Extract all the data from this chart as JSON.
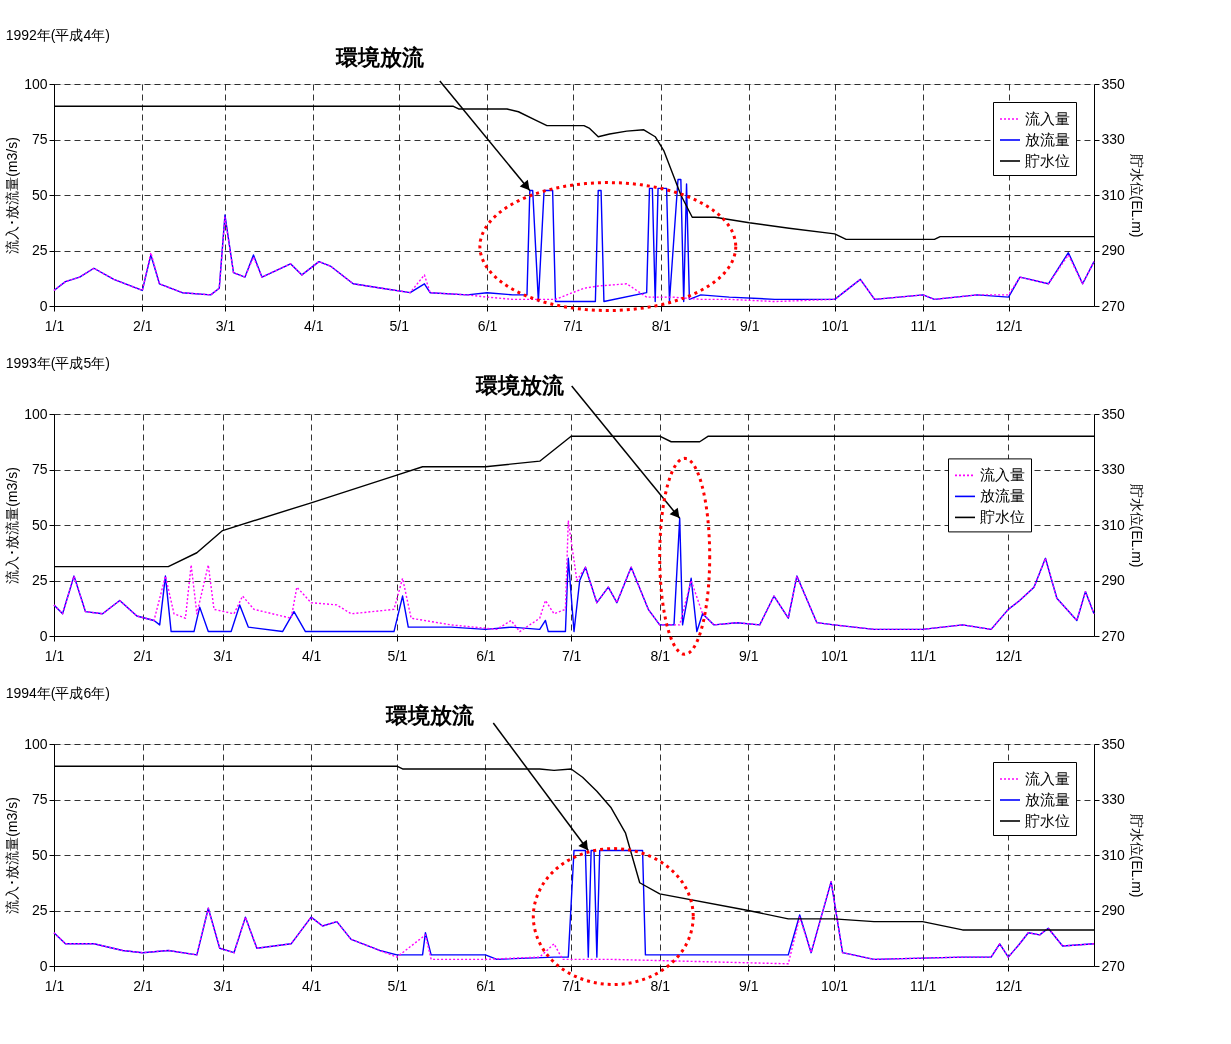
{
  "chart_data": [
    {
      "type": "line",
      "title": "1992年(平成4年)",
      "ylabel": "流入･放流量(m3/s)",
      "y2label": "貯水位(EL.m)",
      "xlim": [
        "1992-01-01",
        "1992-12-31"
      ],
      "xticks": [
        {
          "value": "1992-01-01",
          "label": "1/1"
        },
        {
          "value": "1992-02-01",
          "label": "2/1"
        },
        {
          "value": "1992-03-01",
          "label": "3/1"
        },
        {
          "value": "1992-04-01",
          "label": "4/1"
        },
        {
          "value": "1992-05-01",
          "label": "5/1"
        },
        {
          "value": "1992-06-01",
          "label": "6/1"
        },
        {
          "value": "1992-07-01",
          "label": "7/1"
        },
        {
          "value": "1992-08-01",
          "label": "8/1"
        },
        {
          "value": "1992-09-01",
          "label": "9/1"
        },
        {
          "value": "1992-10-01",
          "label": "10/1"
        },
        {
          "value": "1992-11-01",
          "label": "11/1"
        },
        {
          "value": "1992-12-01",
          "label": "12/1"
        }
      ],
      "ylim": [
        0,
        100
      ],
      "yticks": [
        0,
        25,
        50,
        75,
        100
      ],
      "y2lim": [
        270,
        350
      ],
      "y2ticks": [
        270,
        290,
        310,
        330,
        350
      ],
      "grid": true,
      "legend": "top right",
      "annotations": [
        {
          "text": "環境放流",
          "x": "1992-06-16",
          "y": 52
        }
      ],
      "series": [
        {
          "name": "流入量",
          "color": "#ff00ff",
          "line_style": "dotted",
          "x": [
            "1992-01-01",
            "1992-01-05",
            "1992-01-10",
            "1992-01-15",
            "1992-01-22",
            "1992-02-01",
            "1992-02-04",
            "1992-02-07",
            "1992-02-15",
            "1992-02-25",
            "1992-02-28",
            "1992-03-01",
            "1992-03-04",
            "1992-03-08",
            "1992-03-11",
            "1992-03-14",
            "1992-03-24",
            "1992-03-28",
            "1992-04-03",
            "1992-04-07",
            "1992-04-15",
            "1992-04-25",
            "1992-05-05",
            "1992-05-10",
            "1992-05-12",
            "1992-05-25",
            "1992-06-01",
            "1992-06-10",
            "1992-06-25",
            "1992-07-05",
            "1992-07-10",
            "1992-07-20",
            "1992-07-27",
            "1992-08-05",
            "1992-08-15",
            "1992-08-25",
            "1992-09-10",
            "1992-10-01",
            "1992-10-10",
            "1992-10-15",
            "1992-11-01",
            "1992-11-05",
            "1992-11-20",
            "1992-12-01",
            "1992-12-05",
            "1992-12-15",
            "1992-12-22",
            "1992-12-27",
            "1992-12-31"
          ],
          "values": [
            7,
            11,
            13,
            17,
            12,
            7,
            24,
            10,
            6,
            5,
            8,
            40,
            15,
            13,
            22,
            13,
            19,
            14,
            20,
            18,
            10,
            8,
            6,
            14,
            6,
            5,
            4,
            3,
            3,
            8,
            9,
            10,
            4,
            4,
            3,
            3,
            2,
            3,
            12,
            3,
            5,
            3,
            5,
            5,
            13,
            10,
            23,
            10,
            20
          ]
        },
        {
          "name": "放流量",
          "color": "#0000ff",
          "line_style": "solid",
          "x": [
            "1992-01-01",
            "1992-01-05",
            "1992-01-10",
            "1992-01-15",
            "1992-01-22",
            "1992-02-01",
            "1992-02-04",
            "1992-02-07",
            "1992-02-15",
            "1992-02-25",
            "1992-02-28",
            "1992-03-01",
            "1992-03-04",
            "1992-03-08",
            "1992-03-11",
            "1992-03-14",
            "1992-03-24",
            "1992-03-28",
            "1992-04-03",
            "1992-04-07",
            "1992-04-15",
            "1992-04-25",
            "1992-05-05",
            "1992-05-10",
            "1992-05-12",
            "1992-05-25",
            "1992-06-01",
            "1992-06-10",
            "1992-06-15",
            "1992-06-16",
            "1992-06-17",
            "1992-06-19",
            "1992-06-21",
            "1992-06-24",
            "1992-06-25",
            "1992-07-09",
            "1992-07-10",
            "1992-07-11",
            "1992-07-12",
            "1992-07-27",
            "1992-07-28",
            "1992-07-29",
            "1992-07-30",
            "1992-07-31",
            "1992-08-03",
            "1992-08-04",
            "1992-08-07",
            "1992-08-08",
            "1992-08-09",
            "1992-08-10",
            "1992-08-11",
            "1992-08-15",
            "1992-08-25",
            "1992-09-10",
            "1992-10-01",
            "1992-10-10",
            "1992-10-15",
            "1992-11-01",
            "1992-11-05",
            "1992-11-20",
            "1992-12-01",
            "1992-12-05",
            "1992-12-15",
            "1992-12-22",
            "1992-12-27",
            "1992-12-31"
          ],
          "values": [
            7,
            11,
            13,
            17,
            12,
            7,
            23,
            10,
            6,
            5,
            8,
            41,
            15,
            13,
            23,
            13,
            19,
            14,
            20,
            18,
            10,
            8,
            6,
            10,
            6,
            5,
            6,
            5,
            5,
            52,
            52,
            2,
            52,
            52,
            2,
            2,
            52,
            52,
            2,
            6,
            53,
            53,
            2,
            53,
            53,
            2,
            57,
            57,
            2,
            55,
            3,
            5,
            4,
            3,
            3,
            12,
            3,
            5,
            3,
            5,
            4,
            13,
            10,
            24,
            10,
            20
          ]
        },
        {
          "name": "貯水位",
          "color": "#000000",
          "line_style": "solid",
          "axis": "y2",
          "x": [
            "1992-01-01",
            "1992-05-20",
            "1992-05-22",
            "1992-06-08",
            "1992-06-12",
            "1992-06-18",
            "1992-06-22",
            "1992-07-05",
            "1992-07-07",
            "1992-07-10",
            "1992-07-14",
            "1992-07-20",
            "1992-07-26",
            "1992-07-30",
            "1992-08-02",
            "1992-08-05",
            "1992-08-08",
            "1992-08-12",
            "1992-08-20",
            "1992-09-01",
            "1992-09-15",
            "1992-10-01",
            "1992-10-05",
            "1992-11-05",
            "1992-11-07",
            "1992-12-31"
          ],
          "values": [
            342,
            342,
            341,
            341,
            340,
            337,
            335,
            335,
            334,
            331,
            332,
            333,
            333.5,
            331,
            326,
            318,
            310,
            302,
            302,
            300,
            298,
            296,
            294,
            294,
            295,
            295
          ]
        }
      ]
    },
    {
      "type": "line",
      "title": "1993年(平成5年)",
      "ylabel": "流入･放流量(m3/s)",
      "y2label": "貯水位(EL.m)",
      "xlim": [
        "1993-01-01",
        "1993-12-31"
      ],
      "xticks": [
        {
          "value": "1993-01-01",
          "label": "1/1"
        },
        {
          "value": "1993-02-01",
          "label": "2/1"
        },
        {
          "value": "1993-03-01",
          "label": "3/1"
        },
        {
          "value": "1993-04-01",
          "label": "4/1"
        },
        {
          "value": "1993-05-01",
          "label": "5/1"
        },
        {
          "value": "1993-06-01",
          "label": "6/1"
        },
        {
          "value": "1993-07-01",
          "label": "7/1"
        },
        {
          "value": "1993-08-01",
          "label": "8/1"
        },
        {
          "value": "1993-09-01",
          "label": "9/1"
        },
        {
          "value": "1993-10-01",
          "label": "10/1"
        },
        {
          "value": "1993-11-01",
          "label": "11/1"
        },
        {
          "value": "1993-12-01",
          "label": "12/1"
        }
      ],
      "ylim": [
        0,
        100
      ],
      "yticks": [
        0,
        25,
        50,
        75,
        100
      ],
      "y2lim": [
        270,
        350
      ],
      "y2ticks": [
        270,
        290,
        310,
        330,
        350
      ],
      "grid": true,
      "legend": "right",
      "annotations": [
        {
          "text": "環境放流",
          "x": "1993-08-08",
          "y": 53
        }
      ],
      "series": [
        {
          "name": "流入量",
          "color": "#ff00ff",
          "line_style": "dotted",
          "x": [
            "1993-01-01",
            "1993-01-04",
            "1993-01-08",
            "1993-01-12",
            "1993-01-18",
            "1993-01-24",
            "1993-01-30",
            "1993-02-05",
            "1993-02-09",
            "1993-02-12",
            "1993-02-16",
            "1993-02-18",
            "1993-02-20",
            "1993-02-24",
            "1993-02-26",
            "1993-03-05",
            "1993-03-08",
            "1993-03-12",
            "1993-03-25",
            "1993-03-27",
            "1993-04-01",
            "1993-04-10",
            "1993-04-15",
            "1993-04-30",
            "1993-05-03",
            "1993-05-06",
            "1993-05-20",
            "1993-06-05",
            "1993-06-10",
            "1993-06-13",
            "1993-06-20",
            "1993-06-22",
            "1993-06-25",
            "1993-06-29",
            "1993-06-30",
            "1993-07-03",
            "1993-07-06",
            "1993-07-10",
            "1993-07-14",
            "1993-07-17",
            "1993-07-22",
            "1993-07-28",
            "1993-08-01",
            "1993-08-08",
            "1993-08-12",
            "1993-08-16",
            "1993-08-20",
            "1993-08-28",
            "1993-09-05",
            "1993-09-10",
            "1993-09-15",
            "1993-09-18",
            "1993-09-25",
            "1993-10-01",
            "1993-10-15",
            "1993-11-01",
            "1993-11-15",
            "1993-11-25",
            "1993-12-01",
            "1993-12-05",
            "1993-12-10",
            "1993-12-14",
            "1993-12-18",
            "1993-12-25",
            "1993-12-28",
            "1993-12-31"
          ],
          "values": [
            14,
            10,
            27,
            11,
            10,
            16,
            9,
            7,
            27,
            10,
            8,
            32,
            10,
            32,
            12,
            10,
            18,
            12,
            8,
            22,
            15,
            14,
            10,
            12,
            26,
            8,
            5,
            3,
            7,
            2,
            8,
            16,
            10,
            12,
            52,
            25,
            31,
            15,
            22,
            15,
            31,
            12,
            5,
            5,
            25,
            10,
            5,
            6,
            5,
            18,
            8,
            27,
            6,
            5,
            3,
            3,
            5,
            3,
            12,
            16,
            22,
            35,
            17,
            7,
            20,
            10
          ]
        },
        {
          "name": "放流量",
          "color": "#0000ff",
          "line_style": "solid",
          "x": [
            "1993-01-01",
            "1993-01-04",
            "1993-01-08",
            "1993-01-12",
            "1993-01-18",
            "1993-01-24",
            "1993-01-30",
            "1993-02-05",
            "1993-02-07",
            "1993-02-09",
            "1993-02-11",
            "1993-02-19",
            "1993-02-21",
            "1993-02-24",
            "1993-03-04",
            "1993-03-07",
            "1993-03-10",
            "1993-03-22",
            "1993-03-26",
            "1993-03-30",
            "1993-04-30",
            "1993-05-03",
            "1993-05-05",
            "1993-05-20",
            "1993-06-01",
            "1993-06-10",
            "1993-06-20",
            "1993-06-22",
            "1993-06-23",
            "1993-06-29",
            "1993-06-30",
            "1993-07-02",
            "1993-07-04",
            "1993-07-06",
            "1993-07-10",
            "1993-07-14",
            "1993-07-17",
            "1993-07-22",
            "1993-07-28",
            "1993-08-01",
            "1993-08-06",
            "1993-08-08",
            "1993-08-09",
            "1993-08-12",
            "1993-08-14",
            "1993-08-16",
            "1993-08-20",
            "1993-08-28",
            "1993-09-05",
            "1993-09-10",
            "1993-09-15",
            "1993-09-18",
            "1993-09-25",
            "1993-10-01",
            "1993-10-15",
            "1993-11-01",
            "1993-11-15",
            "1993-11-25",
            "1993-12-01",
            "1993-12-05",
            "1993-12-10",
            "1993-12-14",
            "1993-12-18",
            "1993-12-25",
            "1993-12-28",
            "1993-12-31"
          ],
          "values": [
            14,
            10,
            27,
            11,
            10,
            16,
            9,
            7,
            5,
            27,
            2,
            2,
            13,
            2,
            2,
            14,
            4,
            2,
            11,
            2,
            2,
            18,
            4,
            4,
            3,
            4,
            3,
            7,
            2,
            2,
            35,
            2,
            25,
            31,
            15,
            22,
            15,
            31,
            12,
            5,
            5,
            53,
            5,
            26,
            2,
            10,
            5,
            6,
            5,
            18,
            8,
            27,
            6,
            5,
            3,
            3,
            5,
            3,
            12,
            16,
            22,
            35,
            17,
            7,
            20,
            10
          ]
        },
        {
          "name": "貯水位",
          "color": "#000000",
          "line_style": "solid",
          "axis": "y2",
          "x": [
            "1993-01-01",
            "1993-02-10",
            "1993-02-20",
            "1993-03-01",
            "1993-04-01",
            "1993-05-01",
            "1993-05-10",
            "1993-06-01",
            "1993-06-20",
            "1993-07-01",
            "1993-08-01",
            "1993-08-05",
            "1993-08-15",
            "1993-08-18",
            "1993-12-31"
          ],
          "values": [
            295,
            295,
            300,
            308,
            318,
            328,
            331,
            331,
            333,
            342,
            342,
            340,
            340,
            342,
            342
          ]
        }
      ]
    },
    {
      "type": "line",
      "title": "1994年(平成6年)",
      "ylabel": "流入･放流量(m3/s)",
      "y2label": "貯水位(EL.m)",
      "xlim": [
        "1994-01-01",
        "1994-12-31"
      ],
      "xticks": [
        {
          "value": "1994-01-01",
          "label": "1/1"
        },
        {
          "value": "1994-02-01",
          "label": "2/1"
        },
        {
          "value": "1994-03-01",
          "label": "3/1"
        },
        {
          "value": "1994-04-01",
          "label": "4/1"
        },
        {
          "value": "1994-05-01",
          "label": "5/1"
        },
        {
          "value": "1994-06-01",
          "label": "6/1"
        },
        {
          "value": "1994-07-01",
          "label": "7/1"
        },
        {
          "value": "1994-08-01",
          "label": "8/1"
        },
        {
          "value": "1994-09-01",
          "label": "9/1"
        },
        {
          "value": "1994-10-01",
          "label": "10/1"
        },
        {
          "value": "1994-11-01",
          "label": "11/1"
        },
        {
          "value": "1994-12-01",
          "label": "12/1"
        }
      ],
      "ylim": [
        0,
        100
      ],
      "yticks": [
        0,
        25,
        50,
        75,
        100
      ],
      "y2lim": [
        270,
        350
      ],
      "y2ticks": [
        270,
        290,
        310,
        330,
        350
      ],
      "grid": true,
      "legend": "top right",
      "annotations": [
        {
          "text": "環境放流",
          "x": "1994-07-07",
          "y": 52
        }
      ],
      "series": [
        {
          "name": "流入量",
          "color": "#ff00ff",
          "line_style": "dotted",
          "x": [
            "1994-01-01",
            "1994-01-05",
            "1994-01-15",
            "1994-01-25",
            "1994-02-01",
            "1994-02-10",
            "1994-02-20",
            "1994-02-24",
            "1994-02-28",
            "1994-03-05",
            "1994-03-09",
            "1994-03-13",
            "1994-03-25",
            "1994-04-01",
            "1994-04-05",
            "1994-04-10",
            "1994-04-15",
            "1994-04-25",
            "1994-05-01",
            "1994-05-11",
            "1994-05-13",
            "1994-06-01",
            "1994-06-20",
            "1994-06-25",
            "1994-06-28",
            "1994-07-15",
            "1994-08-15",
            "1994-09-15",
            "1994-09-19",
            "1994-09-23",
            "1994-09-30",
            "1994-10-04",
            "1994-10-15",
            "1994-11-15",
            "1994-11-25",
            "1994-11-28",
            "1994-12-01",
            "1994-12-05",
            "1994-12-08",
            "1994-12-12",
            "1994-12-15",
            "1994-12-20",
            "1994-12-31"
          ],
          "values": [
            15,
            10,
            10,
            7,
            6,
            7,
            5,
            26,
            8,
            6,
            22,
            8,
            10,
            22,
            18,
            20,
            12,
            7,
            4,
            14,
            3,
            3,
            4,
            10,
            3,
            3,
            2,
            1,
            22,
            6,
            38,
            6,
            3,
            4,
            4,
            10,
            4,
            10,
            15,
            14,
            17,
            9,
            10
          ]
        },
        {
          "name": "放流量",
          "color": "#0000ff",
          "line_style": "solid",
          "x": [
            "1994-01-01",
            "1994-01-05",
            "1994-01-15",
            "1994-01-25",
            "1994-02-01",
            "1994-02-10",
            "1994-02-20",
            "1994-02-24",
            "1994-02-28",
            "1994-03-05",
            "1994-03-09",
            "1994-03-13",
            "1994-03-25",
            "1994-04-01",
            "1994-04-05",
            "1994-04-10",
            "1994-04-15",
            "1994-04-25",
            "1994-05-01",
            "1994-05-10",
            "1994-05-11",
            "1994-05-13",
            "1994-06-01",
            "1994-06-05",
            "1994-06-25",
            "1994-06-30",
            "1994-07-02",
            "1994-07-06",
            "1994-07-07",
            "1994-07-08",
            "1994-07-09",
            "1994-07-10",
            "1994-07-11",
            "1994-07-26",
            "1994-07-27",
            "1994-08-15",
            "1994-09-01",
            "1994-09-15",
            "1994-09-19",
            "1994-09-23",
            "1994-09-30",
            "1994-10-04",
            "1994-10-15",
            "1994-11-15",
            "1994-11-25",
            "1994-11-28",
            "1994-12-01",
            "1994-12-05",
            "1994-12-08",
            "1994-12-12",
            "1994-12-15",
            "1994-12-20",
            "1994-12-31"
          ],
          "values": [
            15,
            10,
            10,
            7,
            6,
            7,
            5,
            26,
            8,
            6,
            22,
            8,
            10,
            22,
            18,
            20,
            12,
            7,
            5,
            5,
            15,
            5,
            5,
            3,
            4,
            4,
            52,
            52,
            4,
            52,
            52,
            4,
            52,
            52,
            5,
            5,
            5,
            5,
            23,
            6,
            38,
            6,
            3,
            4,
            4,
            10,
            4,
            10,
            15,
            14,
            17,
            9,
            10
          ]
        },
        {
          "name": "貯水位",
          "color": "#000000",
          "line_style": "solid",
          "axis": "y2",
          "x": [
            "1994-01-01",
            "1994-05-01",
            "1994-05-03",
            "1994-06-20",
            "1994-06-25",
            "1994-07-01",
            "1994-07-05",
            "1994-07-10",
            "1994-07-15",
            "1994-07-20",
            "1994-07-25",
            "1994-08-01",
            "1994-09-01",
            "1994-09-15",
            "1994-10-01",
            "1994-10-15",
            "1994-11-01",
            "1994-11-15",
            "1994-12-31"
          ],
          "values": [
            342,
            342,
            341,
            341,
            340.5,
            341,
            338,
            333,
            327,
            318,
            300,
            296,
            290,
            287,
            287,
            286,
            286,
            283,
            283
          ]
        }
      ]
    }
  ]
}
